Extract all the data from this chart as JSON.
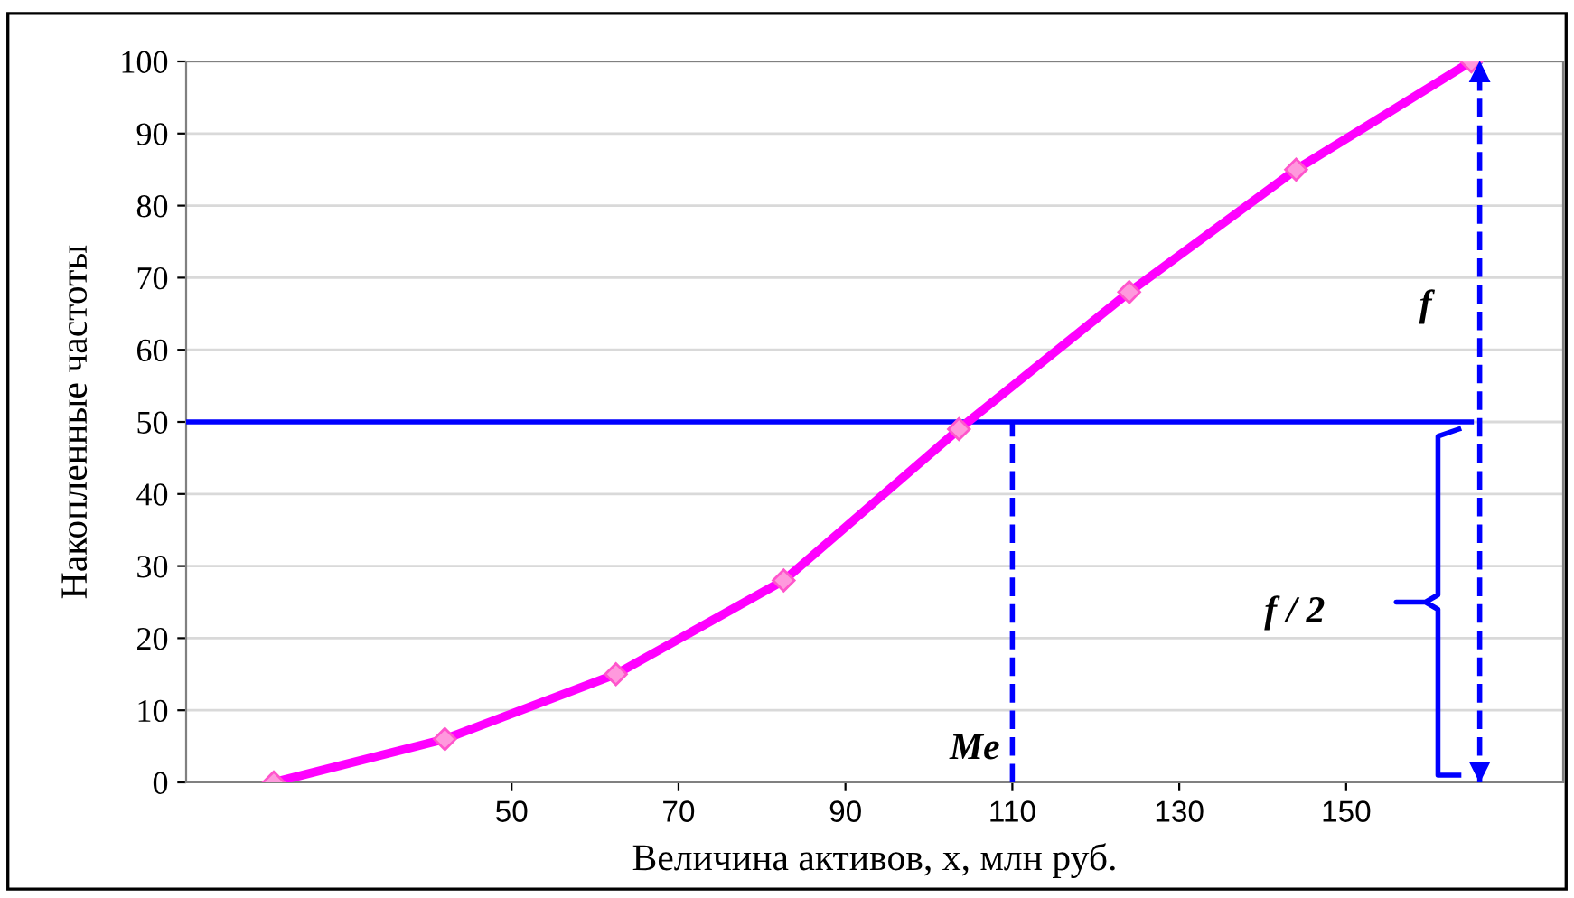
{
  "chart_data": {
    "type": "line",
    "xlabel": "Величина активов, x, млн руб.",
    "ylabel": "Накопленные частоты",
    "x": [
      21.5,
      42,
      62.5,
      82.6,
      103.6,
      124,
      144,
      165
    ],
    "series": [
      {
        "color": "#ff00ff",
        "values": [
          0,
          6,
          15,
          28,
          49,
          68,
          85,
          100
        ]
      }
    ],
    "marker": "diamond",
    "line_style": "solid",
    "xlim": [
      11,
      176
    ],
    "xticks": [
      50,
      70,
      90,
      110,
      130,
      150
    ],
    "ylim": [
      0,
      100
    ],
    "yticks": [
      0,
      10,
      20,
      30,
      40,
      50,
      60,
      70,
      80,
      90,
      100
    ],
    "grid": "y",
    "legend": false,
    "ref_lines": [
      {
        "axis": "y",
        "value": 50,
        "color": "#0000ff",
        "line_style": "solid"
      },
      {
        "axis": "x",
        "value": 110,
        "color": "#0000ff",
        "line_style": "dashed",
        "label": "Me"
      },
      {
        "axis": "x",
        "value": 166,
        "color": "#0000ff",
        "line_style": "dashed",
        "label": "f"
      }
    ],
    "annotations": [
      "f / 2"
    ]
  }
}
